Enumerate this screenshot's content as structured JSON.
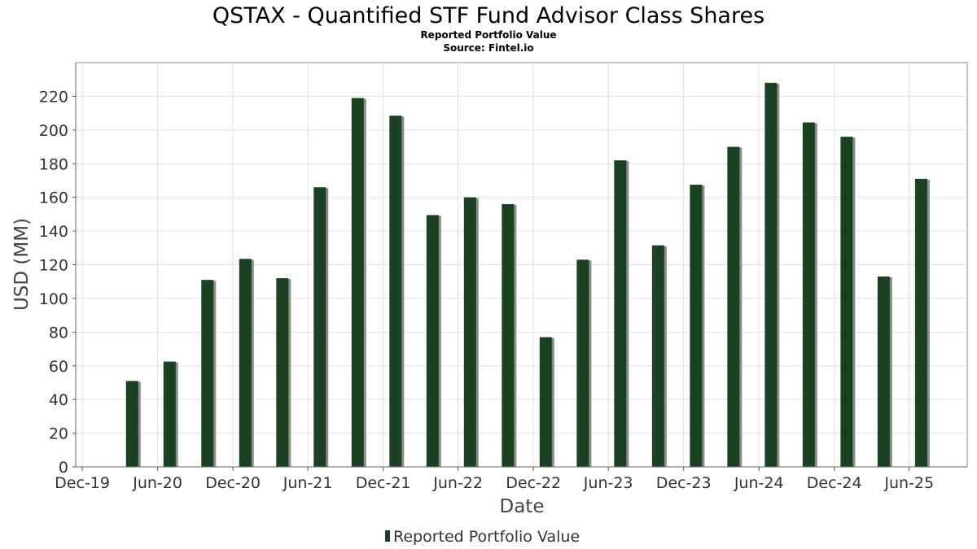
{
  "chart_data": {
    "type": "bar",
    "title": "QSTAX - Quantified STF Fund Advisor Class Shares",
    "subtitles": [
      "Reported Portfolio Value",
      "Source: Fintel.io"
    ],
    "xlabel": "Date",
    "ylabel": "USD (MM)",
    "ylim": [
      0,
      240
    ],
    "yticks": [
      0,
      20,
      40,
      60,
      80,
      100,
      120,
      140,
      160,
      180,
      200,
      220
    ],
    "x_range": [
      "2019-11-15",
      "2025-10-20"
    ],
    "xticks": [
      {
        "date": "2019-12-01",
        "label": "Dec-19"
      },
      {
        "date": "2020-06-01",
        "label": "Jun-20"
      },
      {
        "date": "2020-12-01",
        "label": "Dec-20"
      },
      {
        "date": "2021-06-01",
        "label": "Jun-21"
      },
      {
        "date": "2021-12-01",
        "label": "Dec-21"
      },
      {
        "date": "2022-06-01",
        "label": "Jun-22"
      },
      {
        "date": "2022-12-01",
        "label": "Dec-22"
      },
      {
        "date": "2023-06-01",
        "label": "Jun-23"
      },
      {
        "date": "2023-12-01",
        "label": "Dec-23"
      },
      {
        "date": "2024-06-01",
        "label": "Jun-24"
      },
      {
        "date": "2024-12-01",
        "label": "Dec-24"
      },
      {
        "date": "2025-06-01",
        "label": "Jun-25"
      }
    ],
    "grid": true,
    "legend_position": "bottom-center",
    "series": [
      {
        "name": "Reported Portfolio Value",
        "color": "#1a4222",
        "points": [
          {
            "date": "2020-03-31",
            "value": 51
          },
          {
            "date": "2020-06-30",
            "value": 62.5
          },
          {
            "date": "2020-09-30",
            "value": 111
          },
          {
            "date": "2020-12-31",
            "value": 123.5
          },
          {
            "date": "2021-03-31",
            "value": 112
          },
          {
            "date": "2021-06-30",
            "value": 166
          },
          {
            "date": "2021-09-30",
            "value": 219
          },
          {
            "date": "2021-12-31",
            "value": 208.5
          },
          {
            "date": "2022-03-31",
            "value": 149.5
          },
          {
            "date": "2022-06-30",
            "value": 160
          },
          {
            "date": "2022-09-30",
            "value": 156
          },
          {
            "date": "2022-12-31",
            "value": 77
          },
          {
            "date": "2023-03-31",
            "value": 123
          },
          {
            "date": "2023-06-30",
            "value": 182
          },
          {
            "date": "2023-09-30",
            "value": 131.5
          },
          {
            "date": "2023-12-31",
            "value": 167.5
          },
          {
            "date": "2024-03-31",
            "value": 190
          },
          {
            "date": "2024-06-30",
            "value": 228
          },
          {
            "date": "2024-09-30",
            "value": 204.5
          },
          {
            "date": "2024-12-31",
            "value": 196
          },
          {
            "date": "2025-03-31",
            "value": 113
          },
          {
            "date": "2025-06-30",
            "value": 171
          }
        ]
      }
    ]
  }
}
